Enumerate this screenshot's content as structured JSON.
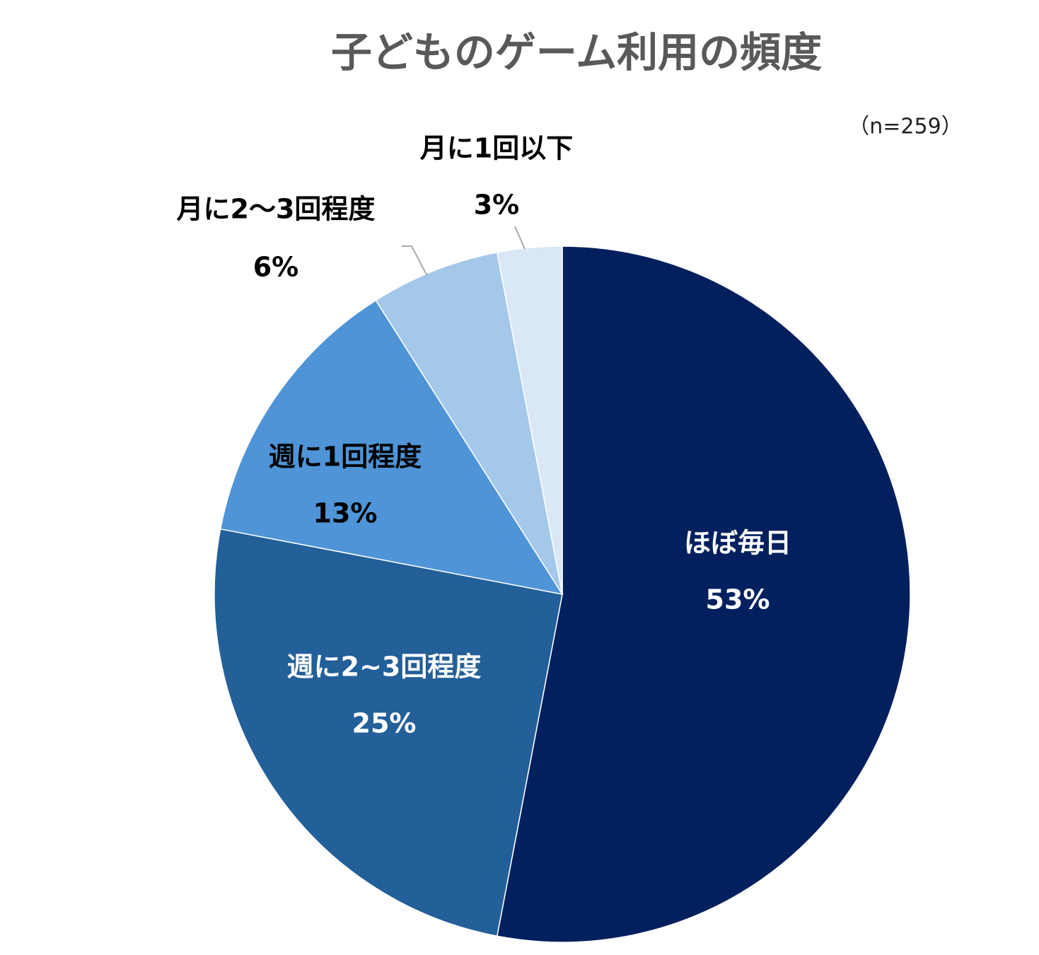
{
  "chart_data": {
    "type": "pie",
    "title": "子どものゲーム利用の頻度",
    "subtitle": "（n=259）",
    "categories": [
      "ほぼ毎日",
      "週に2~3回程度",
      "週に1回程度",
      "月に2～3回程度",
      "月に1回以下"
    ],
    "values": [
      53,
      25,
      13,
      6,
      3
    ],
    "value_labels": [
      "53%",
      "25%",
      "13%",
      "6%",
      "3%"
    ],
    "colors": [
      "#02205e",
      "#235f99",
      "#4f94d6",
      "#a4c8ea",
      "#d9e7f6"
    ]
  }
}
